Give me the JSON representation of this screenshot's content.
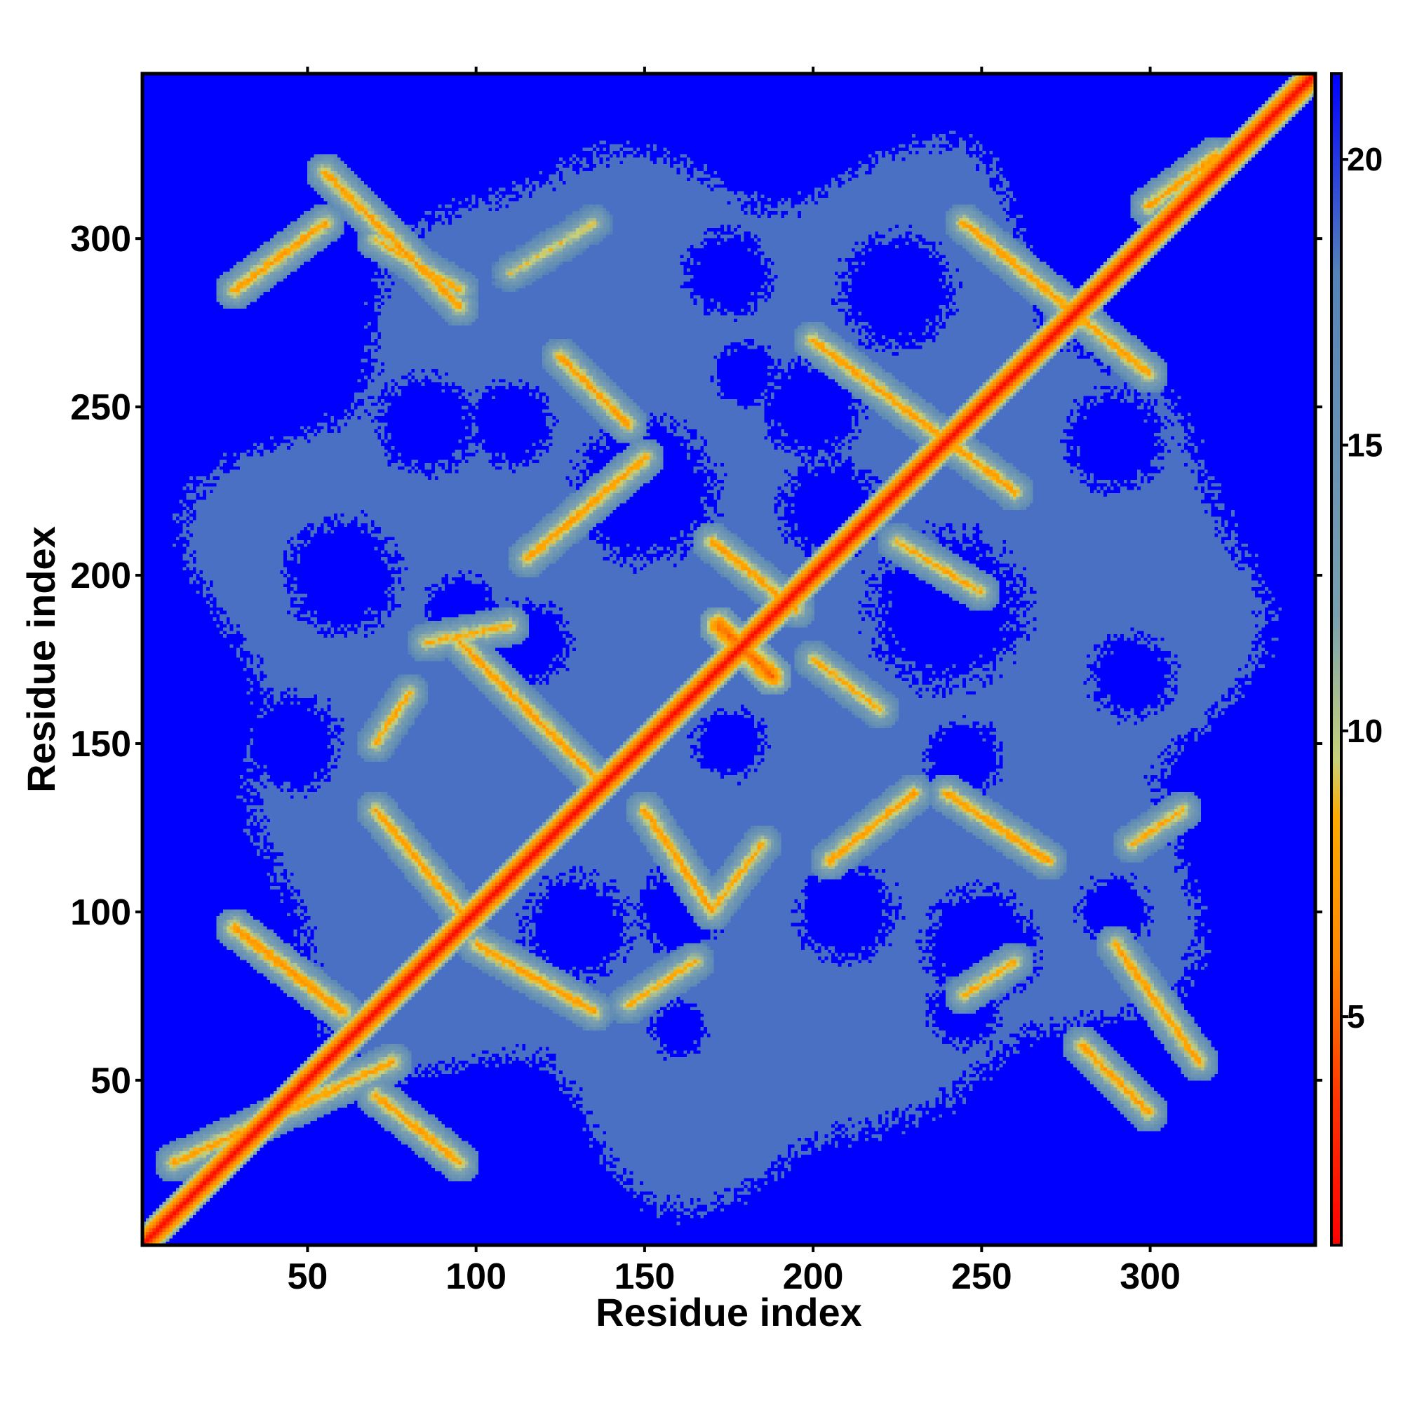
{
  "chart_data": {
    "type": "heatmap",
    "title": "",
    "xlabel": "Residue index",
    "ylabel": "Residue index",
    "xlim": [
      1,
      349
    ],
    "ylim": [
      1,
      349
    ],
    "xticks": [
      50,
      100,
      150,
      200,
      250,
      300
    ],
    "yticks": [
      50,
      100,
      150,
      200,
      250,
      300
    ],
    "xtick_labels": [
      "50",
      "100",
      "150",
      "200",
      "250",
      "300"
    ],
    "ytick_labels": [
      "50",
      "100",
      "150",
      "200",
      "250",
      "300"
    ],
    "colorbar": {
      "range": [
        1,
        21.5
      ],
      "ticks": [
        5,
        10,
        15,
        20
      ],
      "tick_labels": [
        "5",
        "10",
        "15",
        "20"
      ],
      "stops": [
        {
          "value": 1.0,
          "color": "#ff0000"
        },
        {
          "value": 3.5,
          "color": "#ff3300"
        },
        {
          "value": 6.0,
          "color": "#ff8800"
        },
        {
          "value": 8.5,
          "color": "#ffaa00"
        },
        {
          "value": 9.5,
          "color": "#c8d27a"
        },
        {
          "value": 12.0,
          "color": "#7aa0b0"
        },
        {
          "value": 18.0,
          "color": "#5583b8"
        },
        {
          "value": 21.5,
          "color": "#0000ff"
        }
      ]
    },
    "diagonal_value": 1.5,
    "background_value": 21.5,
    "envelope_value": 18.5,
    "contact_bands": [
      {
        "start": [
          10,
          25
        ],
        "end": [
          75,
          55
        ],
        "value": 7.5
      },
      {
        "start": [
          70,
          45
        ],
        "end": [
          95,
          25
        ],
        "value": 7.5
      },
      {
        "start": [
          28,
          95
        ],
        "end": [
          60,
          70
        ],
        "value": 7.0
      },
      {
        "start": [
          28,
          285
        ],
        "end": [
          55,
          305
        ],
        "value": 7.5
      },
      {
        "start": [
          55,
          320
        ],
        "end": [
          95,
          280
        ],
        "value": 7.5
      },
      {
        "start": [
          70,
          300
        ],
        "end": [
          95,
          285
        ],
        "value": 8.0
      },
      {
        "start": [
          110,
          290
        ],
        "end": [
          135,
          305
        ],
        "value": 9.0
      },
      {
        "start": [
          70,
          130
        ],
        "end": [
          95,
          100
        ],
        "value": 7.5
      },
      {
        "start": [
          100,
          90
        ],
        "end": [
          135,
          70
        ],
        "value": 7.5
      },
      {
        "start": [
          145,
          72
        ],
        "end": [
          165,
          85
        ],
        "value": 8.0
      },
      {
        "start": [
          70,
          150
        ],
        "end": [
          80,
          165
        ],
        "value": 8.0
      },
      {
        "start": [
          95,
          180
        ],
        "end": [
          135,
          140
        ],
        "value": 7.5
      },
      {
        "start": [
          85,
          180
        ],
        "end": [
          110,
          185
        ],
        "value": 8.0
      },
      {
        "start": [
          150,
          130
        ],
        "end": [
          170,
          100
        ],
        "value": 7.5
      },
      {
        "start": [
          170,
          100
        ],
        "end": [
          185,
          120
        ],
        "value": 8.0
      },
      {
        "start": [
          115,
          205
        ],
        "end": [
          150,
          235
        ],
        "value": 7.5
      },
      {
        "start": [
          125,
          265
        ],
        "end": [
          145,
          245
        ],
        "value": 7.5
      },
      {
        "start": [
          170,
          210
        ],
        "end": [
          195,
          190
        ],
        "value": 7.5
      },
      {
        "start": [
          200,
          270
        ],
        "end": [
          260,
          225
        ],
        "value": 7.5
      },
      {
        "start": [
          245,
          305
        ],
        "end": [
          300,
          260
        ],
        "value": 7.5
      },
      {
        "start": [
          200,
          175
        ],
        "end": [
          220,
          160
        ],
        "value": 8.0
      },
      {
        "start": [
          205,
          115
        ],
        "end": [
          230,
          135
        ],
        "value": 7.5
      },
      {
        "start": [
          240,
          135
        ],
        "end": [
          270,
          115
        ],
        "value": 7.5
      },
      {
        "start": [
          225,
          210
        ],
        "end": [
          250,
          195
        ],
        "value": 8.0
      },
      {
        "start": [
          245,
          75
        ],
        "end": [
          260,
          85
        ],
        "value": 8.0
      },
      {
        "start": [
          280,
          60
        ],
        "end": [
          300,
          40
        ],
        "value": 7.5
      },
      {
        "start": [
          290,
          90
        ],
        "end": [
          315,
          55
        ],
        "value": 7.5
      },
      {
        "start": [
          295,
          120
        ],
        "end": [
          310,
          130
        ],
        "value": 8.0
      },
      {
        "start": [
          300,
          310
        ],
        "end": [
          320,
          325
        ],
        "value": 7.5
      },
      {
        "start": [
          172,
          185
        ],
        "end": [
          188,
          170
        ],
        "value": 5.0
      }
    ],
    "far_regions": [
      [
        60,
        200,
        16
      ],
      [
        45,
        150,
        14
      ],
      [
        85,
        245,
        14
      ],
      [
        95,
        190,
        10
      ],
      [
        80,
        30,
        10
      ],
      [
        130,
        95,
        15
      ],
      [
        115,
        180,
        12
      ],
      [
        150,
        225,
        20
      ],
      [
        175,
        290,
        12
      ],
      [
        180,
        260,
        9
      ],
      [
        200,
        250,
        14
      ],
      [
        205,
        220,
        14
      ],
      [
        225,
        285,
        16
      ],
      [
        210,
        100,
        14
      ],
      [
        245,
        70,
        10
      ],
      [
        240,
        190,
        22
      ],
      [
        245,
        145,
        11
      ],
      [
        250,
        90,
        16
      ],
      [
        290,
        240,
        14
      ],
      [
        295,
        170,
        12
      ],
      [
        290,
        100,
        10
      ],
      [
        160,
        100,
        12
      ],
      [
        175,
        150,
        10
      ],
      [
        160,
        65,
        8
      ],
      [
        110,
        245,
        12
      ]
    ]
  }
}
